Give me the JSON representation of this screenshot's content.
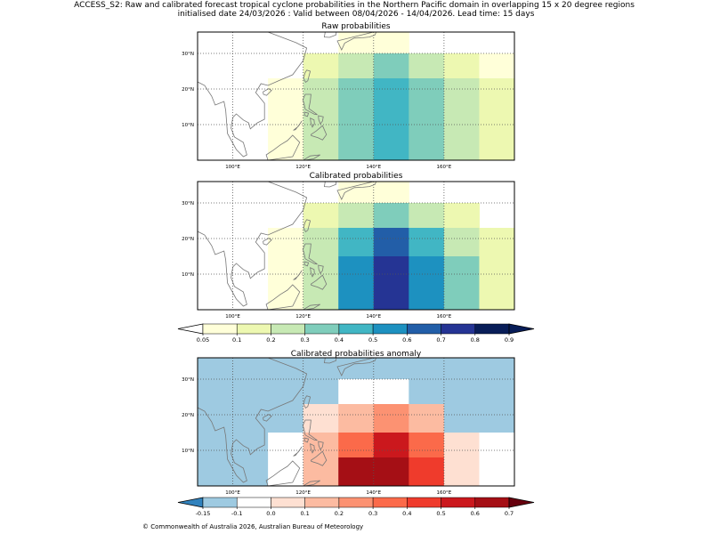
{
  "figure": {
    "title_line1": "ACCESS_S2: Raw and calibrated forecast tropical cyclone probabilities in the Northern Pacific domain in overlapping 15 x 20 degree regions",
    "title_line2": "initialised date 24/03/2026 :  Valid between 08/04/2026 - 14/04/2026. Lead time: 15 days",
    "copyright": "© Commonwealth of Australia 2026, Australian Bureau of Meteorology"
  },
  "axes": {
    "lon_ticks": [
      {
        "value": 100,
        "label": "100°E"
      },
      {
        "value": 120,
        "label": "120°E"
      },
      {
        "value": 140,
        "label": "140°E"
      },
      {
        "value": 160,
        "label": "160°E"
      }
    ],
    "lat_ticks": [
      {
        "value": 10,
        "label": "10°N"
      },
      {
        "value": 20,
        "label": "20°N"
      },
      {
        "value": 30,
        "label": "30°N"
      }
    ],
    "lon_range": [
      90,
      180
    ],
    "lat_range": [
      0,
      36
    ],
    "gridlines": true
  },
  "chart_data": [
    {
      "type": "heatmap",
      "id": "raw",
      "title": "Raw probabilities",
      "x_edges": [
        90,
        100,
        110,
        120,
        130,
        140,
        150,
        160,
        170,
        180
      ],
      "y_edges": [
        36,
        30,
        23,
        15,
        8,
        0
      ],
      "values": [
        [
          null,
          null,
          null,
          null,
          0.05,
          0.05,
          null,
          null,
          null
        ],
        [
          null,
          null,
          null,
          0.1,
          0.2,
          0.3,
          0.2,
          0.1,
          0.05
        ],
        [
          null,
          null,
          0.05,
          0.2,
          0.3,
          0.4,
          0.3,
          0.2,
          0.1
        ],
        [
          null,
          null,
          0.05,
          0.2,
          0.3,
          0.4,
          0.3,
          0.2,
          0.1
        ],
        [
          null,
          null,
          0.05,
          0.2,
          0.3,
          0.4,
          0.3,
          0.2,
          0.1
        ]
      ],
      "colorbar": "prob"
    },
    {
      "type": "heatmap",
      "id": "cal",
      "title": "Calibrated probabilities",
      "x_edges": [
        90,
        100,
        110,
        120,
        130,
        140,
        150,
        160,
        170,
        180
      ],
      "y_edges": [
        36,
        30,
        23,
        15,
        8,
        0
      ],
      "values": [
        [
          null,
          null,
          null,
          null,
          0.05,
          0.05,
          null,
          null,
          null
        ],
        [
          null,
          null,
          null,
          0.1,
          0.2,
          0.3,
          0.2,
          0.1,
          null
        ],
        [
          null,
          null,
          0.05,
          0.2,
          0.4,
          0.6,
          0.4,
          0.2,
          0.1
        ],
        [
          null,
          null,
          0.05,
          0.2,
          0.5,
          0.7,
          0.5,
          0.3,
          0.1
        ],
        [
          null,
          null,
          0.05,
          0.2,
          0.5,
          0.7,
          0.5,
          0.3,
          0.1
        ]
      ],
      "colorbar": "prob"
    },
    {
      "type": "heatmap",
      "id": "anom",
      "title": "Calibrated probabilities anomaly",
      "x_edges": [
        90,
        100,
        110,
        120,
        130,
        140,
        150,
        160,
        170,
        180
      ],
      "y_edges": [
        36,
        30,
        23,
        15,
        8,
        0
      ],
      "values": [
        [
          -0.15,
          -0.15,
          -0.15,
          -0.15,
          -0.15,
          -0.15,
          -0.15,
          -0.15,
          -0.15
        ],
        [
          -0.15,
          -0.15,
          -0.15,
          -0.15,
          -0.1,
          -0.1,
          -0.15,
          -0.15,
          -0.15
        ],
        [
          -0.15,
          -0.15,
          -0.15,
          0.0,
          0.1,
          0.2,
          0.1,
          -0.15,
          -0.15
        ],
        [
          -0.15,
          -0.15,
          -0.1,
          0.1,
          0.3,
          0.5,
          0.3,
          0.0,
          -0.1
        ],
        [
          -0.15,
          -0.15,
          -0.1,
          0.1,
          0.6,
          0.6,
          0.4,
          0.0,
          -0.1
        ]
      ],
      "colorbar": "anom"
    }
  ],
  "colorbars": {
    "prob": {
      "bounds": [
        0.05,
        0.1,
        0.2,
        0.3,
        0.4,
        0.5,
        0.6,
        0.7,
        0.8,
        0.9
      ],
      "colors": [
        "#ffffd9",
        "#edf8b1",
        "#c7e9b4",
        "#7fcdbb",
        "#41b6c4",
        "#1d91c0",
        "#225ea8",
        "#253494",
        "#081d58"
      ],
      "under": "#ffffff",
      "over": "#081d58",
      "tick_labels": [
        "0.05",
        "0.1",
        "0.2",
        "0.3",
        "0.4",
        "0.5",
        "0.6",
        "0.7",
        "0.8",
        "0.9"
      ]
    },
    "anom": {
      "bounds": [
        -0.15,
        -0.1,
        0.0,
        0.1,
        0.2,
        0.3,
        0.4,
        0.5,
        0.6,
        0.7
      ],
      "colors": [
        "#9ecae1",
        "#ffffff",
        "#fee0d2",
        "#fcbba1",
        "#fc9272",
        "#fb6a4a",
        "#ef3b2c",
        "#cb181d",
        "#a50f15"
      ],
      "under": "#3182bd",
      "over": "#67000d",
      "tick_labels": [
        "-0.15",
        "-0.1",
        "0.0",
        "0.1",
        "0.2",
        "0.3",
        "0.4",
        "0.5",
        "0.6",
        "0.7"
      ]
    }
  }
}
